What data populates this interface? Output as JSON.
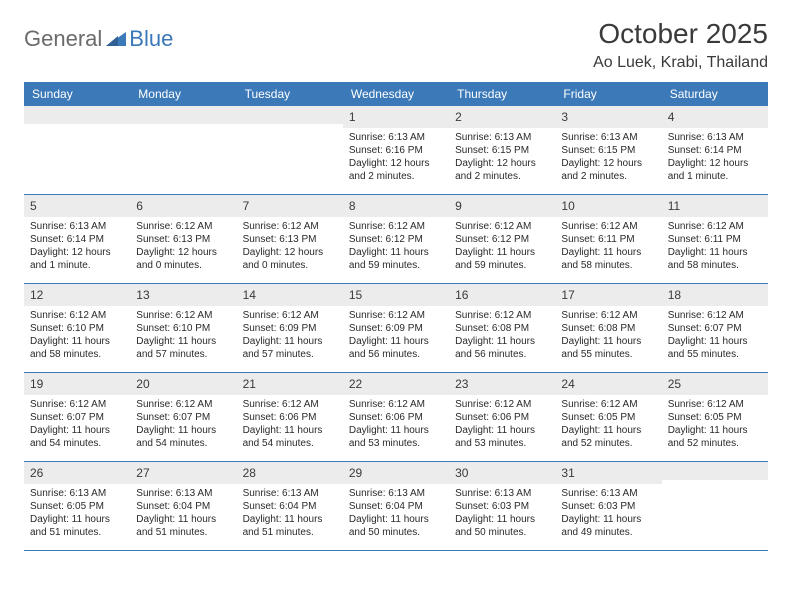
{
  "logo": {
    "gray": "General",
    "blue": "Blue"
  },
  "title": "October 2025",
  "location": "Ao Luek, Krabi, Thailand",
  "colors": {
    "header_bg": "#3b79b8",
    "header_text": "#ffffff",
    "daynum_bg": "#ececec",
    "border": "#3b79b8",
    "text": "#2a2a2a",
    "logo_gray": "#6b6b6b",
    "logo_blue": "#3b79b8"
  },
  "dow": [
    "Sunday",
    "Monday",
    "Tuesday",
    "Wednesday",
    "Thursday",
    "Friday",
    "Saturday"
  ],
  "weeks": [
    [
      null,
      null,
      null,
      {
        "d": "1",
        "sr": "6:13 AM",
        "ss": "6:16 PM",
        "dl": "12 hours and 2 minutes."
      },
      {
        "d": "2",
        "sr": "6:13 AM",
        "ss": "6:15 PM",
        "dl": "12 hours and 2 minutes."
      },
      {
        "d": "3",
        "sr": "6:13 AM",
        "ss": "6:15 PM",
        "dl": "12 hours and 2 minutes."
      },
      {
        "d": "4",
        "sr": "6:13 AM",
        "ss": "6:14 PM",
        "dl": "12 hours and 1 minute."
      }
    ],
    [
      {
        "d": "5",
        "sr": "6:13 AM",
        "ss": "6:14 PM",
        "dl": "12 hours and 1 minute."
      },
      {
        "d": "6",
        "sr": "6:12 AM",
        "ss": "6:13 PM",
        "dl": "12 hours and 0 minutes."
      },
      {
        "d": "7",
        "sr": "6:12 AM",
        "ss": "6:13 PM",
        "dl": "12 hours and 0 minutes."
      },
      {
        "d": "8",
        "sr": "6:12 AM",
        "ss": "6:12 PM",
        "dl": "11 hours and 59 minutes."
      },
      {
        "d": "9",
        "sr": "6:12 AM",
        "ss": "6:12 PM",
        "dl": "11 hours and 59 minutes."
      },
      {
        "d": "10",
        "sr": "6:12 AM",
        "ss": "6:11 PM",
        "dl": "11 hours and 58 minutes."
      },
      {
        "d": "11",
        "sr": "6:12 AM",
        "ss": "6:11 PM",
        "dl": "11 hours and 58 minutes."
      }
    ],
    [
      {
        "d": "12",
        "sr": "6:12 AM",
        "ss": "6:10 PM",
        "dl": "11 hours and 58 minutes."
      },
      {
        "d": "13",
        "sr": "6:12 AM",
        "ss": "6:10 PM",
        "dl": "11 hours and 57 minutes."
      },
      {
        "d": "14",
        "sr": "6:12 AM",
        "ss": "6:09 PM",
        "dl": "11 hours and 57 minutes."
      },
      {
        "d": "15",
        "sr": "6:12 AM",
        "ss": "6:09 PM",
        "dl": "11 hours and 56 minutes."
      },
      {
        "d": "16",
        "sr": "6:12 AM",
        "ss": "6:08 PM",
        "dl": "11 hours and 56 minutes."
      },
      {
        "d": "17",
        "sr": "6:12 AM",
        "ss": "6:08 PM",
        "dl": "11 hours and 55 minutes."
      },
      {
        "d": "18",
        "sr": "6:12 AM",
        "ss": "6:07 PM",
        "dl": "11 hours and 55 minutes."
      }
    ],
    [
      {
        "d": "19",
        "sr": "6:12 AM",
        "ss": "6:07 PM",
        "dl": "11 hours and 54 minutes."
      },
      {
        "d": "20",
        "sr": "6:12 AM",
        "ss": "6:07 PM",
        "dl": "11 hours and 54 minutes."
      },
      {
        "d": "21",
        "sr": "6:12 AM",
        "ss": "6:06 PM",
        "dl": "11 hours and 54 minutes."
      },
      {
        "d": "22",
        "sr": "6:12 AM",
        "ss": "6:06 PM",
        "dl": "11 hours and 53 minutes."
      },
      {
        "d": "23",
        "sr": "6:12 AM",
        "ss": "6:06 PM",
        "dl": "11 hours and 53 minutes."
      },
      {
        "d": "24",
        "sr": "6:12 AM",
        "ss": "6:05 PM",
        "dl": "11 hours and 52 minutes."
      },
      {
        "d": "25",
        "sr": "6:12 AM",
        "ss": "6:05 PM",
        "dl": "11 hours and 52 minutes."
      }
    ],
    [
      {
        "d": "26",
        "sr": "6:13 AM",
        "ss": "6:05 PM",
        "dl": "11 hours and 51 minutes."
      },
      {
        "d": "27",
        "sr": "6:13 AM",
        "ss": "6:04 PM",
        "dl": "11 hours and 51 minutes."
      },
      {
        "d": "28",
        "sr": "6:13 AM",
        "ss": "6:04 PM",
        "dl": "11 hours and 51 minutes."
      },
      {
        "d": "29",
        "sr": "6:13 AM",
        "ss": "6:04 PM",
        "dl": "11 hours and 50 minutes."
      },
      {
        "d": "30",
        "sr": "6:13 AM",
        "ss": "6:03 PM",
        "dl": "11 hours and 50 minutes."
      },
      {
        "d": "31",
        "sr": "6:13 AM",
        "ss": "6:03 PM",
        "dl": "11 hours and 49 minutes."
      },
      null
    ]
  ],
  "labels": {
    "sunrise": "Sunrise:",
    "sunset": "Sunset:",
    "daylight": "Daylight:"
  }
}
